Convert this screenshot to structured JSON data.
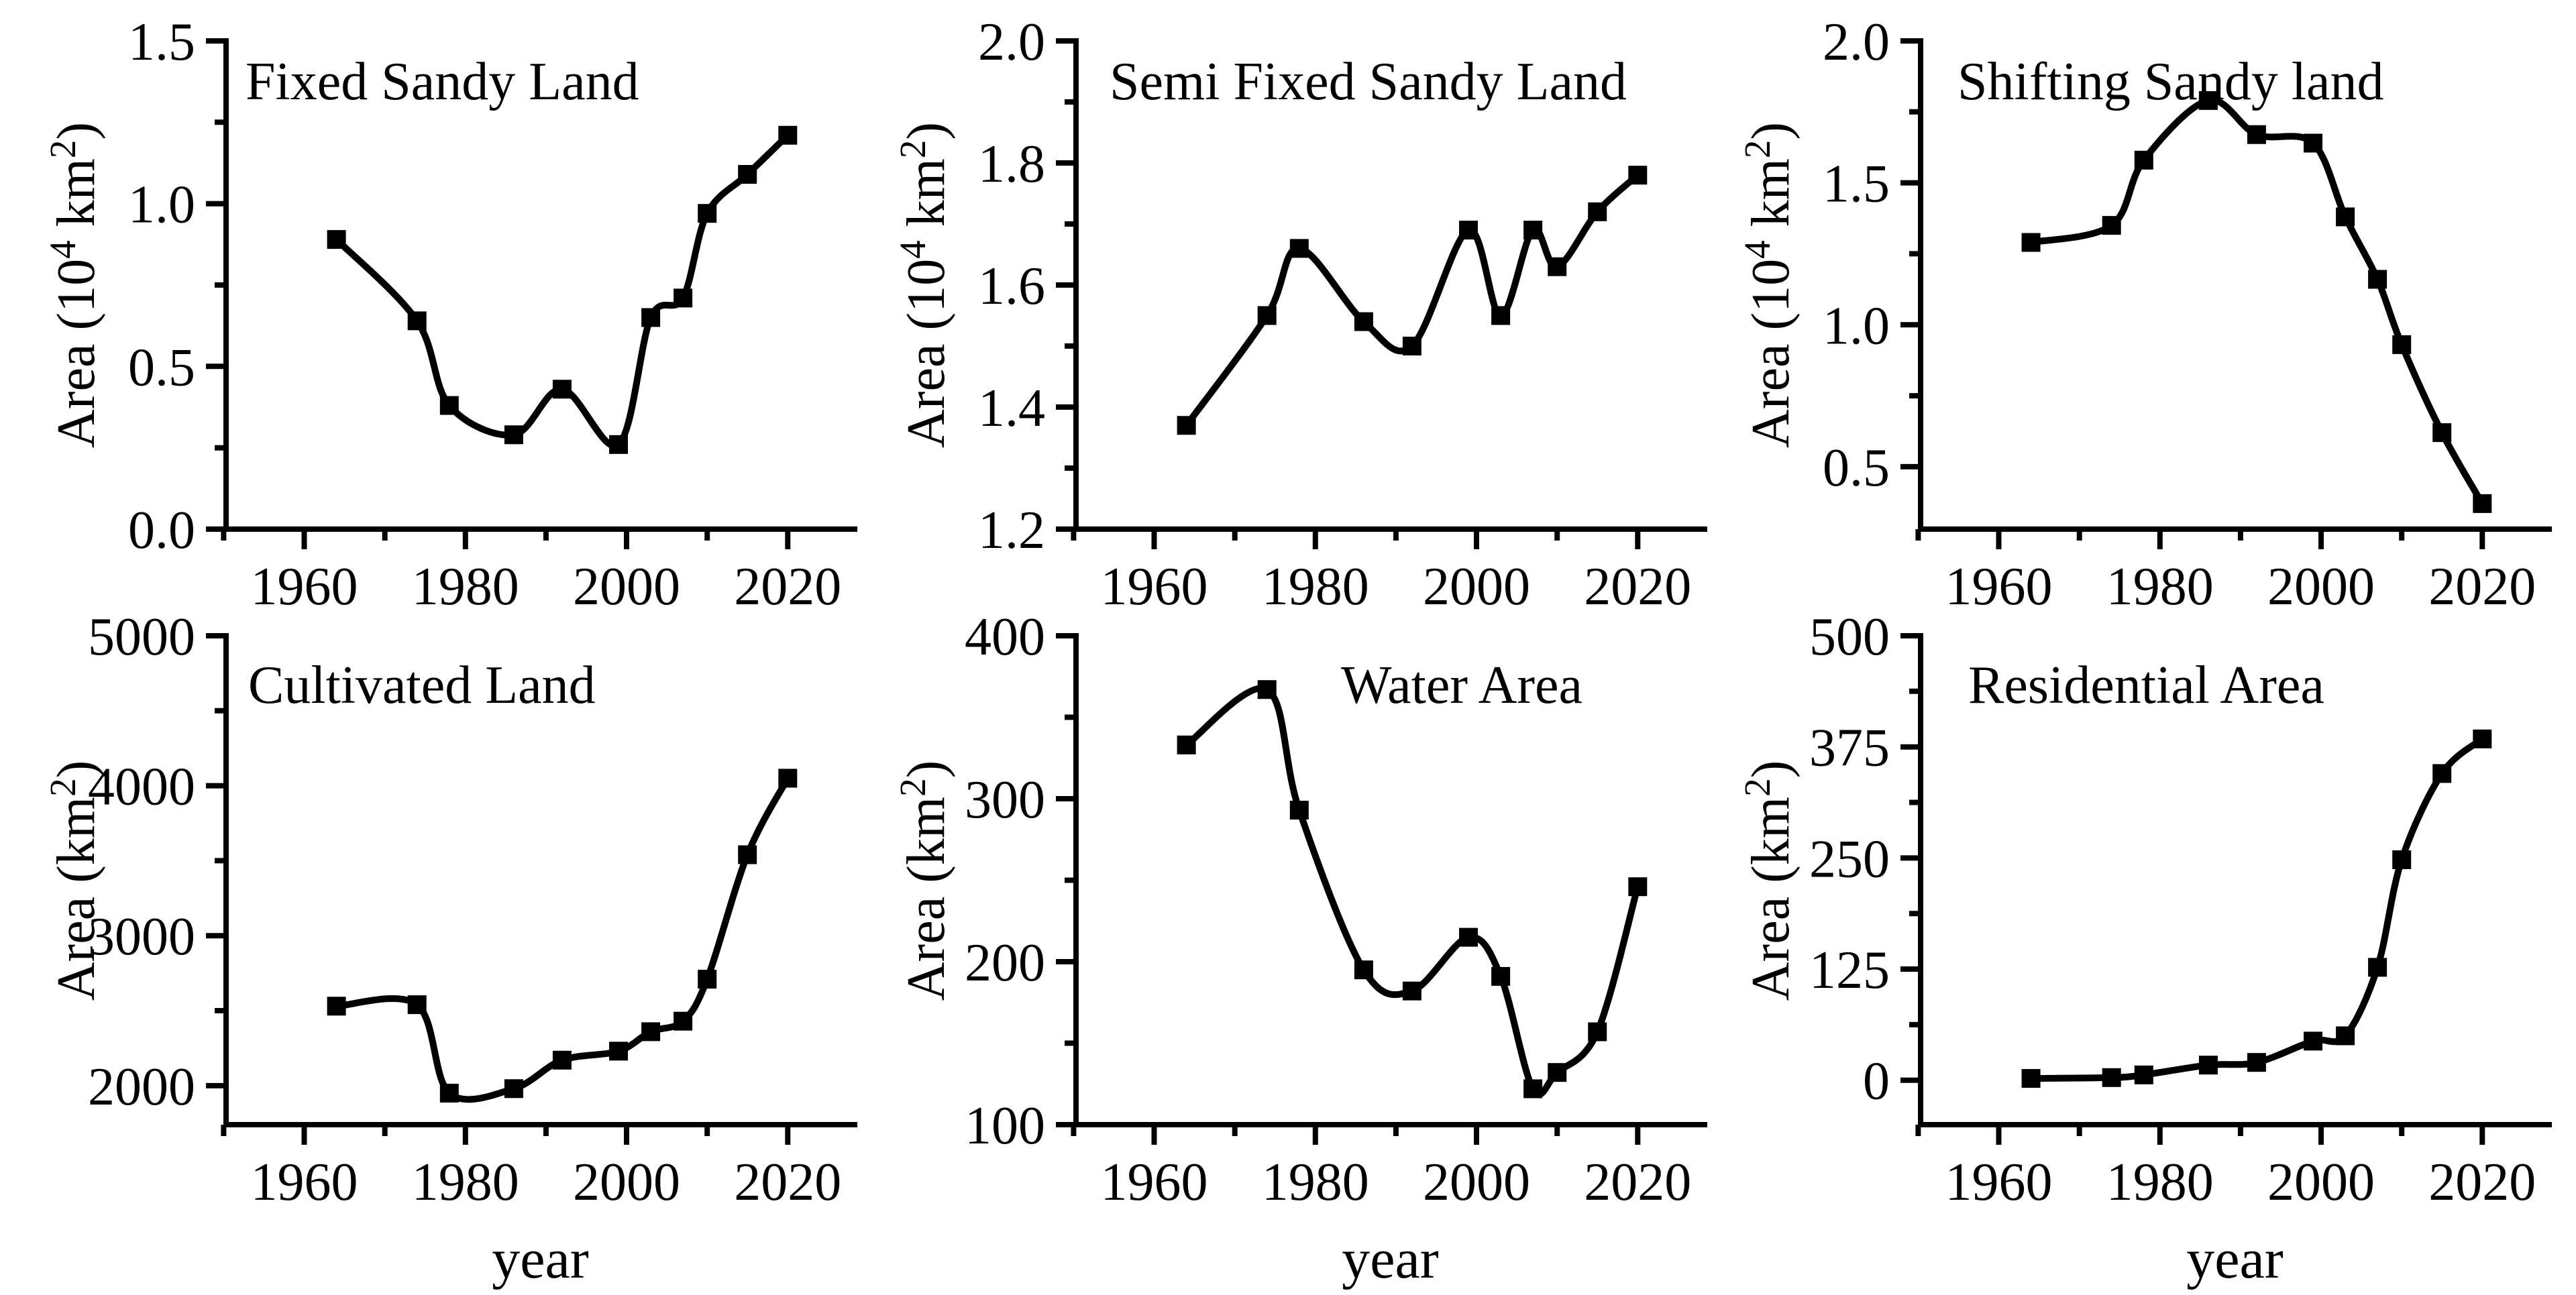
{
  "figure": {
    "background": "#ffffff",
    "line_color": "#000000",
    "text_color": "#000000",
    "rows": 2,
    "cols": 3
  },
  "chart_data": [
    {
      "type": "line",
      "title": "Fixed Sandy Land",
      "ylabel": "Area (10⁴ km²)",
      "ylabel_parts": [
        {
          "text": "Area (10"
        },
        {
          "text": "4",
          "sup": true
        },
        {
          "text": " km"
        },
        {
          "text": "2",
          "sup": true
        },
        {
          "text": ")"
        }
      ],
      "xlabel": null,
      "x": [
        1964,
        1974,
        1978,
        1986,
        1992,
        1999,
        2003,
        2007,
        2010,
        2015,
        2020
      ],
      "values": [
        0.89,
        0.64,
        0.38,
        0.29,
        0.43,
        0.26,
        0.65,
        0.71,
        0.97,
        1.09,
        1.21
      ],
      "xlim": [
        1950.3,
        2028.3
      ],
      "ylim": [
        0.0,
        1.5
      ],
      "yticks": [
        {
          "label": "0.0",
          "value": 0.0
        },
        {
          "label": "0.5",
          "value": 0.5
        },
        {
          "label": "1.0",
          "value": 1.0
        },
        {
          "label": "1.5",
          "value": 1.5
        }
      ],
      "yminor": [
        0.25,
        0.75,
        1.25
      ],
      "xticks": [
        {
          "label": "1960",
          "value": 1960
        },
        {
          "label": "1980",
          "value": 1980
        },
        {
          "label": "2000",
          "value": 2000
        },
        {
          "label": "2020",
          "value": 2020
        }
      ],
      "xminor": [
        1950,
        1970,
        1990,
        2010
      ],
      "marker": "square",
      "grid": false
    },
    {
      "type": "line",
      "title": "Semi Fixed Sandy Land",
      "ylabel": "Area (10⁴ km²)",
      "ylabel_parts": [
        {
          "text": "Area (10"
        },
        {
          "text": "4",
          "sup": true
        },
        {
          "text": " km"
        },
        {
          "text": "2",
          "sup": true
        },
        {
          "text": ")"
        }
      ],
      "xlabel": null,
      "x": [
        1964,
        1974,
        1978,
        1986,
        1992,
        1999,
        2003,
        2007,
        2010,
        2015,
        2020
      ],
      "values": [
        1.37,
        1.55,
        1.66,
        1.54,
        1.5,
        1.69,
        1.55,
        1.69,
        1.63,
        1.72,
        1.78
      ],
      "xlim": [
        1950.3,
        2028.3
      ],
      "ylim": [
        1.2,
        2.0
      ],
      "yticks": [
        {
          "label": "1.2",
          "value": 1.2
        },
        {
          "label": "1.4",
          "value": 1.4
        },
        {
          "label": "1.6",
          "value": 1.6
        },
        {
          "label": "1.8",
          "value": 1.8
        },
        {
          "label": "2.0",
          "value": 2.0
        }
      ],
      "yminor": [
        1.3,
        1.5,
        1.7,
        1.9
      ],
      "xticks": [
        {
          "label": "1960",
          "value": 1960
        },
        {
          "label": "1980",
          "value": 1980
        },
        {
          "label": "2000",
          "value": 2000
        },
        {
          "label": "2020",
          "value": 2020
        }
      ],
      "xminor": [
        1950,
        1970,
        1990,
        2010
      ],
      "marker": "square",
      "grid": false
    },
    {
      "type": "line",
      "title": "Shifting Sandy land",
      "ylabel": "Area (10⁴ km²)",
      "ylabel_parts": [
        {
          "text": "Area (10"
        },
        {
          "text": "4",
          "sup": true
        },
        {
          "text": " km"
        },
        {
          "text": "2",
          "sup": true
        },
        {
          "text": ")"
        }
      ],
      "xlabel": null,
      "x": [
        1964,
        1974,
        1978,
        1986,
        1992,
        1999,
        2003,
        2007,
        2010,
        2015,
        2020
      ],
      "values": [
        1.29,
        1.35,
        1.58,
        1.79,
        1.67,
        1.64,
        1.38,
        1.16,
        0.93,
        0.62,
        0.37
      ],
      "xlim": [
        1950.3,
        2028.3
      ],
      "ylim": [
        0.28,
        2.0
      ],
      "yticks": [
        {
          "label": "0.5",
          "value": 0.5
        },
        {
          "label": "1.0",
          "value": 1.0
        },
        {
          "label": "1.5",
          "value": 1.5
        },
        {
          "label": "2.0",
          "value": 2.0
        }
      ],
      "yminor": [
        0.75,
        1.25,
        1.75
      ],
      "xticks": [
        {
          "label": "1960",
          "value": 1960
        },
        {
          "label": "1980",
          "value": 1980
        },
        {
          "label": "2000",
          "value": 2000
        },
        {
          "label": "2020",
          "value": 2020
        }
      ],
      "xminor": [
        1950,
        1970,
        1990,
        2010
      ],
      "marker": "square",
      "grid": false
    },
    {
      "type": "line",
      "title": "Cultivated Land",
      "ylabel": "Area (km²)",
      "ylabel_parts": [
        {
          "text": "Area (km"
        },
        {
          "text": "2",
          "sup": true
        },
        {
          "text": ")"
        }
      ],
      "xlabel": "year",
      "x": [
        1964,
        1974,
        1978,
        1986,
        1992,
        1999,
        2003,
        2007,
        2010,
        2015,
        2020
      ],
      "values": [
        2530,
        2540,
        1950,
        1980,
        2170,
        2230,
        2360,
        2430,
        2710,
        3540,
        4050
      ],
      "xlim": [
        1950.3,
        2028.3
      ],
      "ylim": [
        1740,
        5000
      ],
      "yticks": [
        {
          "label": "2000",
          "value": 2000
        },
        {
          "label": "3000",
          "value": 3000
        },
        {
          "label": "4000",
          "value": 4000
        },
        {
          "label": "5000",
          "value": 5000
        }
      ],
      "yminor": [
        2500,
        3500,
        4500
      ],
      "xticks": [
        {
          "label": "1960",
          "value": 1960
        },
        {
          "label": "1980",
          "value": 1980
        },
        {
          "label": "2000",
          "value": 2000
        },
        {
          "label": "2020",
          "value": 2020
        }
      ],
      "xminor": [
        1950,
        1970,
        1990,
        2010
      ],
      "marker": "square",
      "grid": false
    },
    {
      "type": "line",
      "title": "Water Area",
      "ylabel": "Area (km²)",
      "ylabel_parts": [
        {
          "text": "Area (km"
        },
        {
          "text": "2",
          "sup": true
        },
        {
          "text": ")"
        }
      ],
      "xlabel": "year",
      "x": [
        1964,
        1974,
        1978,
        1986,
        1992,
        1999,
        2003,
        2007,
        2010,
        2015,
        2020
      ],
      "values": [
        333,
        367,
        293,
        195,
        182,
        215,
        191,
        122,
        132,
        157,
        246
      ],
      "xlim": [
        1950.3,
        2028.3
      ],
      "ylim": [
        100,
        400
      ],
      "yticks": [
        {
          "label": "100",
          "value": 100
        },
        {
          "label": "200",
          "value": 200
        },
        {
          "label": "300",
          "value": 300
        },
        {
          "label": "400",
          "value": 400
        }
      ],
      "yminor": [
        150,
        250,
        350
      ],
      "xticks": [
        {
          "label": "1960",
          "value": 1960
        },
        {
          "label": "1980",
          "value": 1980
        },
        {
          "label": "2000",
          "value": 2000
        },
        {
          "label": "2020",
          "value": 2020
        }
      ],
      "xminor": [
        1950,
        1970,
        1990,
        2010
      ],
      "marker": "square",
      "grid": false
    },
    {
      "type": "line",
      "title": "Residential Area",
      "ylabel": "Area (km²)",
      "ylabel_parts": [
        {
          "text": "Area (km"
        },
        {
          "text": "2",
          "sup": true
        },
        {
          "text": ")"
        }
      ],
      "xlabel": "year",
      "x": [
        1964,
        1974,
        1978,
        1986,
        1992,
        1999,
        2003,
        2007,
        2010,
        2015,
        2020
      ],
      "values": [
        2,
        3,
        6,
        17,
        20,
        44,
        50,
        127,
        248,
        345,
        384
      ],
      "xlim": [
        1950.3,
        2028.3
      ],
      "ylim": [
        -50,
        500
      ],
      "yticks": [
        {
          "label": "0",
          "value": 0
        },
        {
          "label": "125",
          "value": 125
        },
        {
          "label": "250",
          "value": 250
        },
        {
          "label": "375",
          "value": 375
        },
        {
          "label": "500",
          "value": 500
        }
      ],
      "yminor": [
        62.5,
        187.5,
        312.5,
        437.5
      ],
      "xticks": [
        {
          "label": "1960",
          "value": 1960
        },
        {
          "label": "1980",
          "value": 1980
        },
        {
          "label": "2000",
          "value": 2000
        },
        {
          "label": "2020",
          "value": 2020
        }
      ],
      "xminor": [
        1950,
        1970,
        1990,
        2010
      ],
      "marker": "square",
      "grid": false
    }
  ]
}
